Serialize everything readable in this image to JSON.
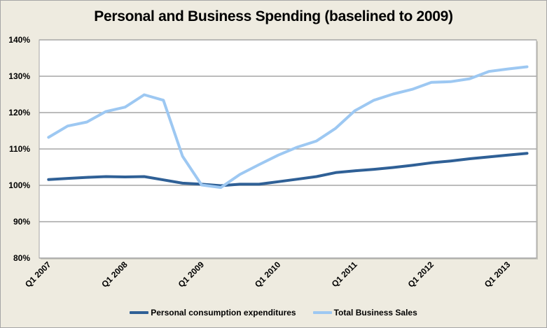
{
  "chart_data": {
    "type": "line",
    "title": "Personal and Business Spending (baselined to 2009)",
    "xlabel": "",
    "ylabel": "",
    "ylim": [
      80,
      140
    ],
    "y_unit": "%",
    "y_ticks": [
      80,
      90,
      100,
      110,
      120,
      130,
      140
    ],
    "y_tick_labels": [
      "80%",
      "90%",
      "100%",
      "110%",
      "120%",
      "130%",
      "140%"
    ],
    "grid": true,
    "legend_position": "bottom",
    "x": [
      "Q1 2007",
      "Q2 2007",
      "Q3 2007",
      "Q4 2007",
      "Q1 2008",
      "Q2 2008",
      "Q3 2008",
      "Q4 2008",
      "Q1 2009",
      "Q2 2009",
      "Q3 2009",
      "Q4 2009",
      "Q1 2010",
      "Q2 2010",
      "Q3 2010",
      "Q4 2010",
      "Q1 2011",
      "Q2 2011",
      "Q3 2011",
      "Q4 2011",
      "Q1 2012",
      "Q2 2012",
      "Q3 2012",
      "Q4 2012",
      "Q1 2013",
      "Q2 2013"
    ],
    "x_tick_labels": [
      "Q1 2007",
      "Q1 2008",
      "Q1 2009",
      "Q1 2010",
      "Q1 2011",
      "Q1 2012",
      "Q1 2013"
    ],
    "series": [
      {
        "name": "Personal consumption expenditures",
        "color": "#2f6096",
        "values": [
          101.6,
          101.9,
          102.2,
          102.4,
          102.3,
          102.4,
          101.5,
          100.6,
          100.3,
          99.9,
          100.3,
          100.3,
          101.0,
          101.7,
          102.4,
          103.5,
          104.0,
          104.4,
          104.9,
          105.5,
          106.2,
          106.7,
          107.3,
          107.8,
          108.3,
          108.8
        ]
      },
      {
        "name": "Total Business Sales",
        "color": "#9dc8f2",
        "values": [
          113.2,
          116.3,
          117.4,
          120.3,
          121.5,
          124.9,
          123.4,
          108.0,
          100.1,
          99.4,
          103.0,
          105.7,
          108.3,
          110.5,
          112.2,
          115.7,
          120.5,
          123.4,
          125.1,
          126.4,
          128.3,
          128.5,
          129.3,
          131.3,
          132.0,
          132.6
        ]
      }
    ]
  }
}
